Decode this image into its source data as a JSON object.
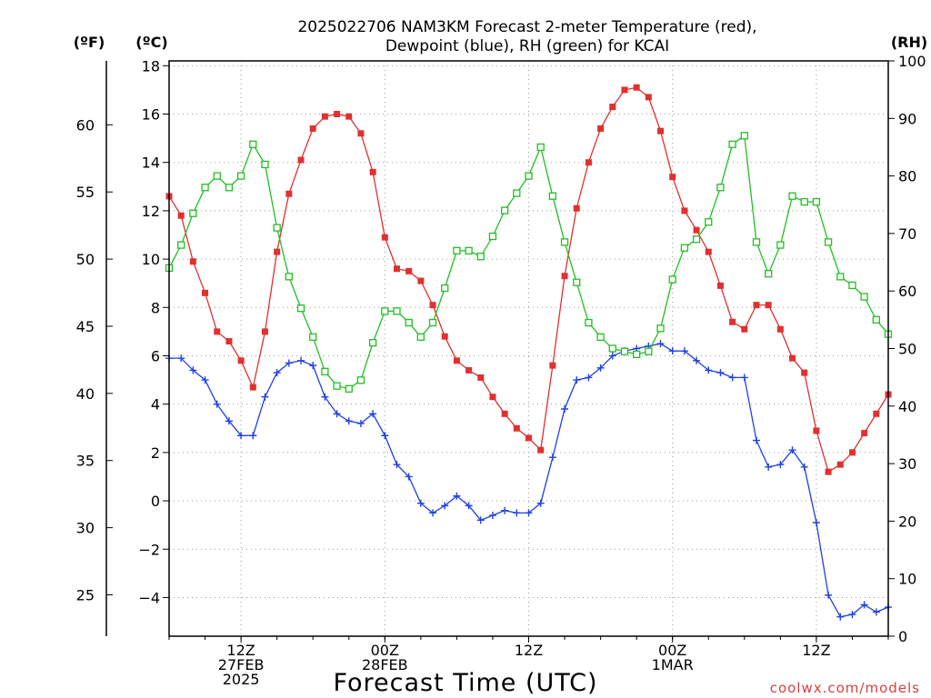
{
  "chart_data": {
    "type": "line",
    "title_lines": [
      "2025022706 NAM3KM Forecast 2-meter Temperature (red),",
      "Dewpoint (blue), RH (green) for KCAI"
    ],
    "xlabel": "Forecast Time (UTC)",
    "credit": "coolwx.com/models",
    "unit_labels": {
      "fahrenheit": "(ºF)",
      "celsius": "(ºC)",
      "rh": "(RH)"
    },
    "x_hours": [
      0,
      60
    ],
    "x_ticks": [
      {
        "hour": 6,
        "lines": [
          "12Z",
          "27FEB",
          "2025"
        ]
      },
      {
        "hour": 18,
        "lines": [
          "00Z",
          "28FEB"
        ]
      },
      {
        "hour": 30,
        "lines": [
          "12Z"
        ]
      },
      {
        "hour": 42,
        "lines": [
          "00Z",
          "1MAR"
        ]
      },
      {
        "hour": 54,
        "lines": [
          "12Z"
        ]
      }
    ],
    "y_celsius": {
      "range": [
        -5.6,
        18.2
      ],
      "ticks": [
        18,
        16,
        14,
        12,
        10,
        8,
        6,
        4,
        2,
        0,
        -2,
        -4
      ]
    },
    "y_fahrenheit": {
      "ticks": [
        60,
        55,
        50,
        45,
        40,
        35,
        30,
        25
      ]
    },
    "y_rh": {
      "range": [
        0,
        100
      ],
      "ticks": [
        100,
        90,
        80,
        70,
        60,
        50,
        40,
        30,
        20,
        10,
        0
      ]
    },
    "grid": true,
    "colors": {
      "temperature": "#e03030",
      "dewpoint": "#2040e0",
      "rh": "#20c020"
    },
    "series": [
      {
        "key": "temperature",
        "marker": "filled-square",
        "axis": "celsius",
        "hours": [
          0,
          1,
          2,
          3,
          4,
          5,
          6,
          7,
          8,
          9,
          10,
          11,
          12,
          13,
          14,
          15,
          16,
          17,
          18,
          19,
          20,
          21,
          22,
          23,
          24,
          25,
          26,
          27,
          28,
          29,
          30,
          31,
          32,
          33,
          34,
          35,
          36,
          37,
          38,
          39,
          40,
          41,
          42,
          43,
          44,
          45,
          46,
          47,
          48,
          49,
          50,
          51,
          52,
          53,
          54,
          55,
          56,
          57,
          58,
          59,
          60
        ],
        "values": [
          12.6,
          11.8,
          9.9,
          8.6,
          7.0,
          6.6,
          5.8,
          4.7,
          7.0,
          10.3,
          12.7,
          14.1,
          15.4,
          15.9,
          16.0,
          15.9,
          15.2,
          13.6,
          10.9,
          9.6,
          9.5,
          9.1,
          8.1,
          6.8,
          5.8,
          5.4,
          5.1,
          4.3,
          3.6,
          3.0,
          2.6,
          2.1,
          5.6,
          9.3,
          12.1,
          14.0,
          15.4,
          16.3,
          17.0,
          17.1,
          16.7,
          15.3,
          13.4,
          12.0,
          11.2,
          10.3,
          8.9,
          7.4,
          7.1,
          8.1,
          8.1,
          7.1,
          5.9,
          5.3,
          2.9,
          1.2,
          1.5,
          2.0,
          2.8,
          3.6,
          4.4
        ]
      },
      {
        "key": "dewpoint",
        "marker": "plus",
        "axis": "celsius",
        "hours": [
          0,
          1,
          2,
          3,
          4,
          5,
          6,
          7,
          8,
          9,
          10,
          11,
          12,
          13,
          14,
          15,
          16,
          17,
          18,
          19,
          20,
          21,
          22,
          23,
          24,
          25,
          26,
          27,
          28,
          29,
          30,
          31,
          32,
          33,
          34,
          35,
          36,
          37,
          38,
          39,
          40,
          41,
          42,
          43,
          44,
          45,
          46,
          47,
          48,
          49,
          50,
          51,
          52,
          53,
          54,
          55,
          56,
          57,
          58,
          59,
          60
        ],
        "values": [
          5.9,
          5.9,
          5.4,
          5.0,
          4.0,
          3.3,
          2.7,
          2.7,
          4.3,
          5.3,
          5.7,
          5.8,
          5.6,
          4.3,
          3.6,
          3.3,
          3.2,
          3.6,
          2.7,
          1.5,
          1.0,
          -0.1,
          -0.5,
          -0.2,
          0.2,
          -0.2,
          -0.8,
          -0.6,
          -0.4,
          -0.5,
          -0.5,
          -0.1,
          1.8,
          3.8,
          5.0,
          5.1,
          5.5,
          6.0,
          6.2,
          6.3,
          6.4,
          6.5,
          6.2,
          6.2,
          5.8,
          5.4,
          5.3,
          5.1,
          5.1,
          2.5,
          1.4,
          1.5,
          2.1,
          1.4,
          -0.9,
          -3.9,
          -4.8,
          -4.7,
          -4.3,
          -4.6,
          -4.4
        ]
      },
      {
        "key": "rh",
        "marker": "open-square",
        "axis": "rh",
        "hours": [
          0,
          1,
          2,
          3,
          4,
          5,
          6,
          7,
          8,
          9,
          10,
          11,
          12,
          13,
          14,
          15,
          16,
          17,
          18,
          19,
          20,
          21,
          22,
          23,
          24,
          25,
          26,
          27,
          28,
          29,
          30,
          31,
          32,
          33,
          34,
          35,
          36,
          37,
          38,
          39,
          40,
          41,
          42,
          43,
          44,
          45,
          46,
          47,
          48,
          49,
          50,
          51,
          52,
          53,
          54,
          55,
          56,
          57,
          58,
          59,
          60
        ],
        "values": [
          64,
          68,
          73.5,
          78,
          80,
          78,
          80,
          85.5,
          82,
          71,
          62.5,
          57,
          52,
          46,
          43.5,
          43,
          44.5,
          51,
          56.5,
          56.5,
          54.5,
          52,
          54.5,
          60.5,
          67,
          67,
          66,
          69.5,
          74,
          77,
          80,
          85,
          76.5,
          68.5,
          61.5,
          54.5,
          52,
          50,
          49.5,
          49,
          49.5,
          53.5,
          62,
          67.5,
          69,
          72,
          78,
          85.5,
          87,
          68.5,
          63,
          68,
          76.5,
          75.5,
          75.5,
          68.5,
          62.5,
          61,
          59,
          55,
          52.5
        ]
      }
    ]
  }
}
